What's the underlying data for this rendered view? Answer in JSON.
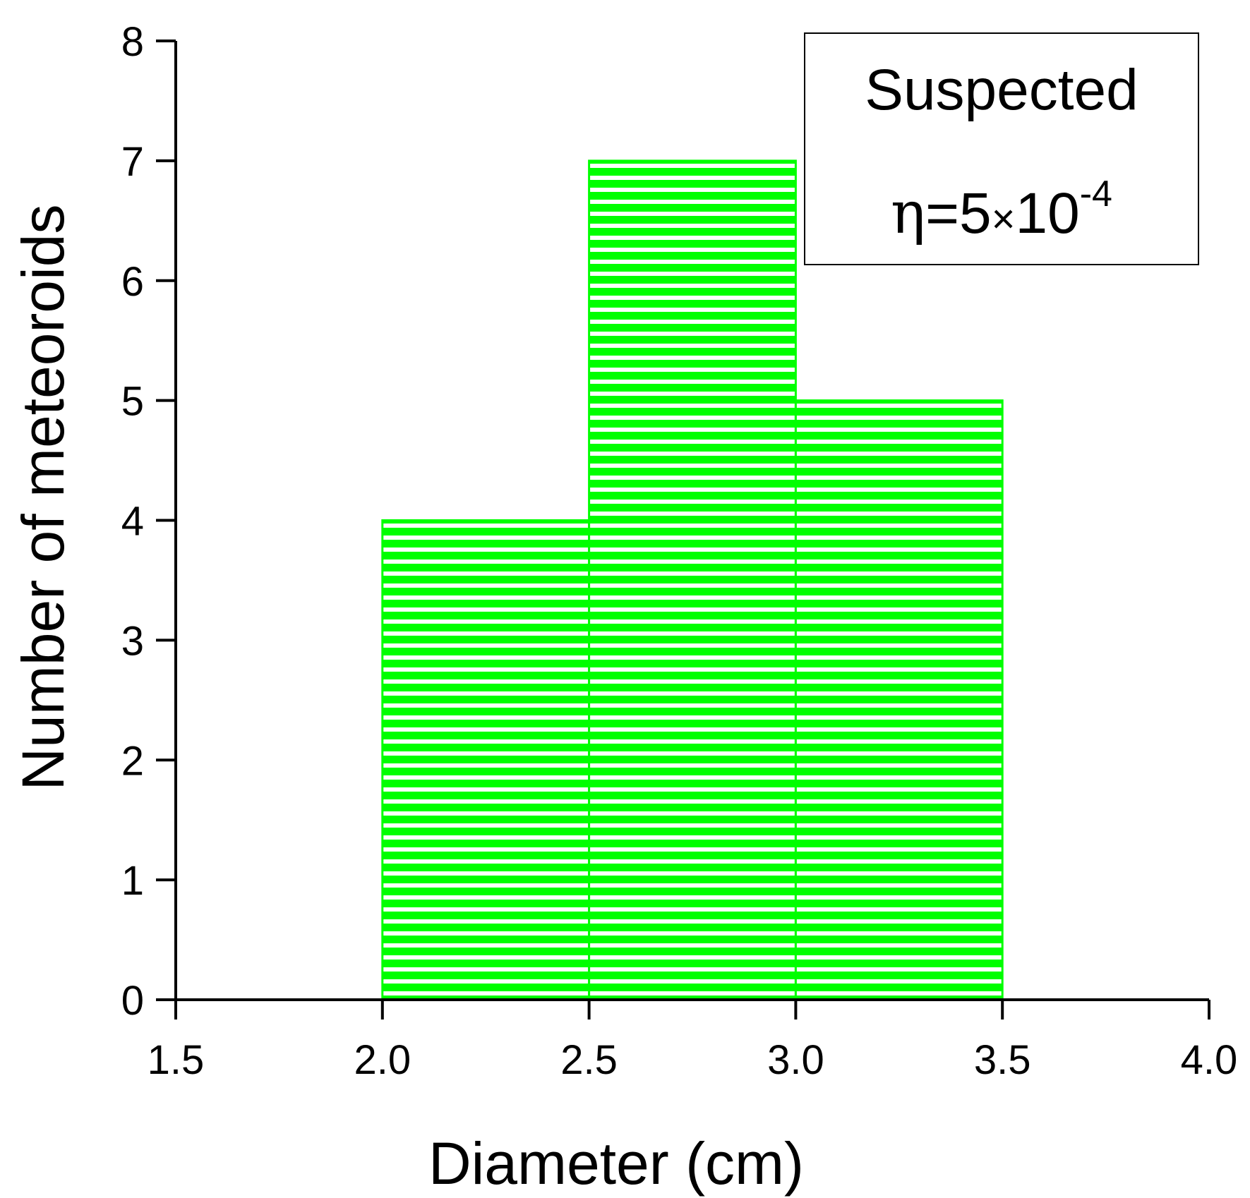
{
  "chart_data": {
    "type": "bar",
    "histogram": true,
    "bins": [
      {
        "x_start": 2.0,
        "x_end": 2.5,
        "value": 4
      },
      {
        "x_start": 2.5,
        "x_end": 3.0,
        "value": 7
      },
      {
        "x_start": 3.0,
        "x_end": 3.5,
        "value": 5
      }
    ],
    "title": "",
    "xlabel": "Diameter (cm)",
    "ylabel": "Number of meteoroids",
    "xlim": [
      1.5,
      4.0
    ],
    "ylim": [
      0,
      8
    ],
    "x_ticks": [
      "1.5",
      "2.0",
      "2.5",
      "3.0",
      "3.5",
      "4.0"
    ],
    "y_ticks": [
      "0",
      "1",
      "2",
      "3",
      "4",
      "5",
      "6",
      "7",
      "8"
    ],
    "grid": false,
    "bar_color": "#00ff00",
    "bar_pattern": "horizontal-stripes",
    "annotation": {
      "line1": "Suspected",
      "eta_symbol": "η",
      "eta_value": "=5",
      "times_symbol": "×",
      "base": "10",
      "exponent": "-4",
      "placement": "top-right"
    }
  }
}
